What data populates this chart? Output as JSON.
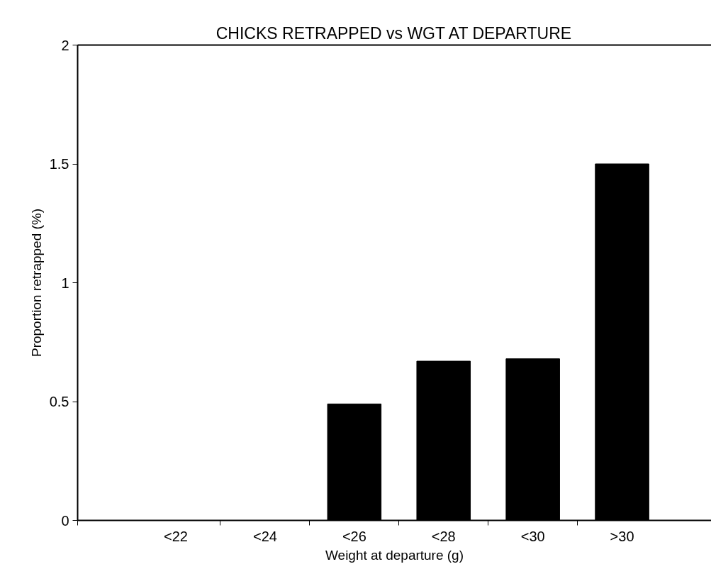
{
  "chart_data": {
    "type": "bar",
    "title": "CHICKS RETRAPPED vs WGT AT DEPARTURE",
    "xlabel": "Weight at departure (g)",
    "ylabel": "Proportion retrapped (%)",
    "categories": [
      "<22",
      "<24",
      "<26",
      "<28",
      "<30",
      ">30"
    ],
    "values": [
      0,
      0,
      0.49,
      0.67,
      0.68,
      1.5
    ],
    "color": "#000000",
    "ylim": [
      0,
      2
    ],
    "yticks": [
      0,
      0.5,
      1,
      1.5,
      2
    ],
    "grid": false
  }
}
